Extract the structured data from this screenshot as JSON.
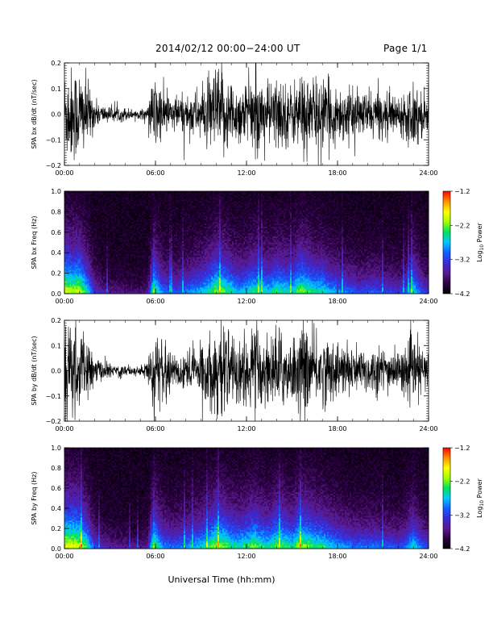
{
  "header": {
    "title": "2014/02/12  00:00−24:00 UT",
    "page": "Page 1/1"
  },
  "xlabel": "Universal Time (hh:mm)",
  "colors": {
    "trace": "#000000",
    "colorbar": [
      "#000000",
      "#2a0040",
      "#5a1a8f",
      "#3a2ad6",
      "#1060ff",
      "#00c8ff",
      "#00e060",
      "#a0ff00",
      "#ffff00",
      "#ff9000",
      "#ff0000"
    ]
  },
  "chart_data": [
    {
      "type": "line",
      "ylabel": "SPA bx dB/dt (nT/sec)",
      "xticks": [
        "00:00",
        "06:00",
        "12:00",
        "18:00",
        "24:00"
      ],
      "yticks": [
        "0.2",
        "0.1",
        "0.0",
        "−0.1",
        "−0.2"
      ],
      "xlim": [
        0,
        24
      ],
      "ylim": [
        -0.2,
        0.2
      ],
      "envelope": {
        "x": [
          0,
          0.5,
          1,
          1.5,
          2,
          2.5,
          3,
          3.5,
          4,
          4.5,
          5,
          5.5,
          5.9,
          6.1,
          6.5,
          7,
          7.5,
          8,
          8.5,
          9,
          9.5,
          10,
          10.5,
          11,
          11.5,
          12,
          12.5,
          13,
          13.5,
          14,
          14.5,
          15,
          15.5,
          16,
          16.5,
          17,
          17.5,
          18,
          18.5,
          19,
          19.5,
          20,
          20.5,
          21,
          21.5,
          22,
          22.5,
          23,
          23.5,
          24
        ],
        "amplitude": [
          0.2,
          0.2,
          0.2,
          0.14,
          0.06,
          0.04,
          0.03,
          0.03,
          0.03,
          0.02,
          0.02,
          0.03,
          0.17,
          0.15,
          0.1,
          0.08,
          0.08,
          0.08,
          0.1,
          0.1,
          0.14,
          0.2,
          0.18,
          0.15,
          0.12,
          0.14,
          0.16,
          0.15,
          0.13,
          0.16,
          0.14,
          0.12,
          0.18,
          0.17,
          0.15,
          0.15,
          0.13,
          0.12,
          0.11,
          0.1,
          0.09,
          0.1,
          0.1,
          0.09,
          0.09,
          0.08,
          0.09,
          0.15,
          0.1,
          0.08
        ]
      }
    },
    {
      "type": "heatmap",
      "ylabel": "SPA bx Freq (Hz)",
      "xticks": [
        "00:00",
        "06:00",
        "12:00",
        "18:00",
        "24:00"
      ],
      "yticks": [
        "1.0",
        "0.8",
        "0.6",
        "0.4",
        "0.2",
        "0.0"
      ],
      "xlim": [
        0,
        24
      ],
      "ylim": [
        0,
        1.0
      ],
      "colorbar_label": "Log10 Power",
      "colorbar_ticks": [
        "−1.2",
        "−2.2",
        "−3.2",
        "−4.2"
      ],
      "zlim": [
        -4.2,
        -1.2
      ],
      "activity": {
        "x": [
          0,
          0.5,
          1,
          1.5,
          2,
          2.5,
          3,
          3.5,
          4,
          4.5,
          5,
          5.5,
          5.9,
          6.1,
          6.5,
          7,
          7.5,
          8,
          8.5,
          9,
          9.5,
          10,
          10.5,
          11,
          11.5,
          12,
          12.5,
          13,
          13.5,
          14,
          14.5,
          15,
          15.5,
          16,
          16.5,
          17,
          17.5,
          18,
          18.5,
          19,
          19.5,
          20,
          20.5,
          21,
          21.5,
          22,
          22.5,
          23,
          23.5,
          24
        ],
        "level": [
          1.0,
          0.9,
          0.95,
          0.7,
          0.35,
          0.25,
          0.2,
          0.18,
          0.18,
          0.15,
          0.15,
          0.2,
          0.85,
          0.7,
          0.5,
          0.45,
          0.45,
          0.5,
          0.55,
          0.6,
          0.7,
          0.85,
          0.8,
          0.7,
          0.6,
          0.65,
          0.75,
          0.7,
          0.65,
          0.75,
          0.7,
          0.65,
          0.85,
          0.8,
          0.7,
          0.7,
          0.6,
          0.55,
          0.5,
          0.45,
          0.4,
          0.45,
          0.45,
          0.4,
          0.4,
          0.35,
          0.45,
          0.7,
          0.45,
          0.35
        ]
      }
    },
    {
      "type": "line",
      "ylabel": "SPA by dB/dt (nT/sec)",
      "xticks": [
        "00:00",
        "06:00",
        "12:00",
        "18:00",
        "24:00"
      ],
      "yticks": [
        "0.2",
        "0.1",
        "0.0",
        "−0.1",
        "−0.2"
      ],
      "xlim": [
        0,
        24
      ],
      "ylim": [
        -0.2,
        0.2
      ],
      "envelope": {
        "x": [
          0,
          0.5,
          1,
          1.5,
          2,
          2.5,
          3,
          3.5,
          4,
          4.5,
          5,
          5.5,
          5.9,
          6.1,
          6.5,
          7,
          7.5,
          8,
          8.5,
          9,
          9.5,
          10,
          10.5,
          11,
          11.5,
          12,
          12.5,
          13,
          13.5,
          14,
          14.5,
          15,
          15.5,
          16,
          16.5,
          17,
          17.5,
          18,
          18.5,
          19,
          19.5,
          20,
          20.5,
          21,
          21.5,
          22,
          22.5,
          23,
          23.5,
          24
        ],
        "amplitude": [
          0.2,
          0.2,
          0.18,
          0.12,
          0.06,
          0.04,
          0.03,
          0.03,
          0.03,
          0.02,
          0.02,
          0.04,
          0.2,
          0.16,
          0.1,
          0.08,
          0.08,
          0.09,
          0.1,
          0.12,
          0.14,
          0.2,
          0.18,
          0.14,
          0.14,
          0.16,
          0.2,
          0.16,
          0.14,
          0.18,
          0.16,
          0.13,
          0.2,
          0.18,
          0.15,
          0.15,
          0.13,
          0.12,
          0.11,
          0.1,
          0.1,
          0.1,
          0.1,
          0.1,
          0.09,
          0.08,
          0.1,
          0.14,
          0.1,
          0.08
        ]
      }
    },
    {
      "type": "heatmap",
      "ylabel": "SPA by Freq (Hz)",
      "xticks": [
        "00:00",
        "06:00",
        "12:00",
        "18:00",
        "24:00"
      ],
      "yticks": [
        "1.0",
        "0.8",
        "0.6",
        "0.4",
        "0.2",
        "0.0"
      ],
      "xlim": [
        0,
        24
      ],
      "ylim": [
        0,
        1.0
      ],
      "colorbar_label": "Log10 Power",
      "colorbar_ticks": [
        "−1.2",
        "−2.2",
        "−3.2",
        "−4.2"
      ],
      "zlim": [
        -4.2,
        -1.2
      ],
      "activity": {
        "x": [
          0,
          0.5,
          1,
          1.5,
          2,
          2.5,
          3,
          3.5,
          4,
          4.5,
          5,
          5.5,
          5.9,
          6.1,
          6.5,
          7,
          7.5,
          8,
          8.5,
          9,
          9.5,
          10,
          10.5,
          11,
          11.5,
          12,
          12.5,
          13,
          13.5,
          14,
          14.5,
          15,
          15.5,
          16,
          16.5,
          17,
          17.5,
          18,
          18.5,
          19,
          19.5,
          20,
          20.5,
          21,
          21.5,
          22,
          22.5,
          23,
          23.5,
          24
        ],
        "level": [
          1.0,
          1.0,
          0.95,
          0.75,
          0.4,
          0.3,
          0.25,
          0.22,
          0.22,
          0.2,
          0.2,
          0.25,
          0.9,
          0.75,
          0.55,
          0.5,
          0.5,
          0.55,
          0.6,
          0.65,
          0.75,
          0.9,
          0.85,
          0.75,
          0.7,
          0.75,
          0.85,
          0.75,
          0.7,
          0.85,
          0.8,
          0.7,
          0.9,
          0.85,
          0.75,
          0.75,
          0.65,
          0.6,
          0.55,
          0.5,
          0.5,
          0.5,
          0.5,
          0.45,
          0.45,
          0.4,
          0.5,
          0.7,
          0.5,
          0.4
        ]
      }
    }
  ]
}
